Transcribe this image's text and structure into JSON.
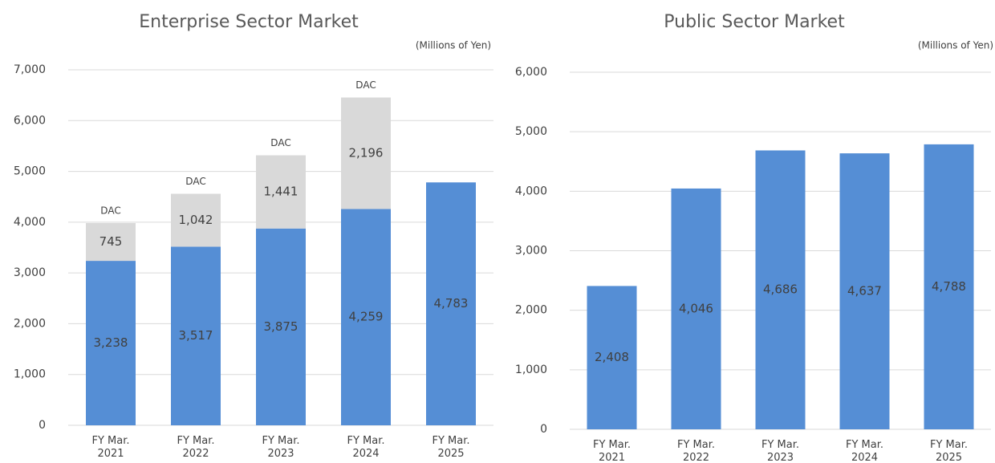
{
  "chart_data": [
    {
      "type": "stacked_bar",
      "title": "Enterprise Sector Market",
      "unit": "(Millions of Yen)",
      "categories": [
        "FY Mar. 2021",
        "FY Mar. 2022",
        "FY Mar. 2023",
        "FY Mar. 2024",
        "FY Mar. 2025"
      ],
      "series": [
        {
          "color": "#558ed5",
          "values": [
            3238,
            3517,
            3875,
            4259,
            4783
          ],
          "value_labels": [
            "3,238",
            "3,517",
            "3,875",
            "4,259",
            "4,783"
          ]
        },
        {
          "name": "DAC",
          "color": "#d9d9d9",
          "values": [
            745,
            1042,
            1441,
            2196,
            null
          ],
          "value_labels": [
            "745",
            "1,042",
            "1,441",
            "2,196",
            null
          ]
        }
      ],
      "ylim": [
        0,
        7000
      ],
      "yticks": [
        0,
        {
          "value": 1000,
          "label": "1,000"
        },
        {
          "value": 2000,
          "label": "2,000"
        },
        {
          "value": 3000,
          "label": "3,000"
        },
        {
          "value": 4000,
          "label": "4,000"
        },
        {
          "value": 5000,
          "label": "5,000"
        },
        {
          "value": 6000,
          "label": "6,000"
        },
        {
          "value": 7000,
          "label": "7,000"
        }
      ],
      "grid": true
    },
    {
      "type": "bar",
      "title": "Public Sector Market",
      "unit": "(Millions of Yen)",
      "categories": [
        "FY Mar. 2021",
        "FY Mar. 2022",
        "FY Mar. 2023",
        "FY Mar. 2024",
        "FY Mar. 2025"
      ],
      "series": [
        {
          "color": "#558ed5",
          "values": [
            2408,
            4046,
            4686,
            4637,
            4788
          ],
          "value_labels": [
            "2,408",
            "4,046",
            "4,686",
            "4,637",
            "4,788"
          ]
        }
      ],
      "ylim": [
        0,
        6000
      ],
      "yticks": [
        0,
        {
          "value": 1000,
          "label": "1,000"
        },
        {
          "value": 2000,
          "label": "2,000"
        },
        {
          "value": 3000,
          "label": "3,000"
        },
        {
          "value": 4000,
          "label": "4,000"
        },
        {
          "value": 5000,
          "label": "5,000"
        },
        {
          "value": 6000,
          "label": "6,000"
        }
      ],
      "grid": true
    }
  ]
}
